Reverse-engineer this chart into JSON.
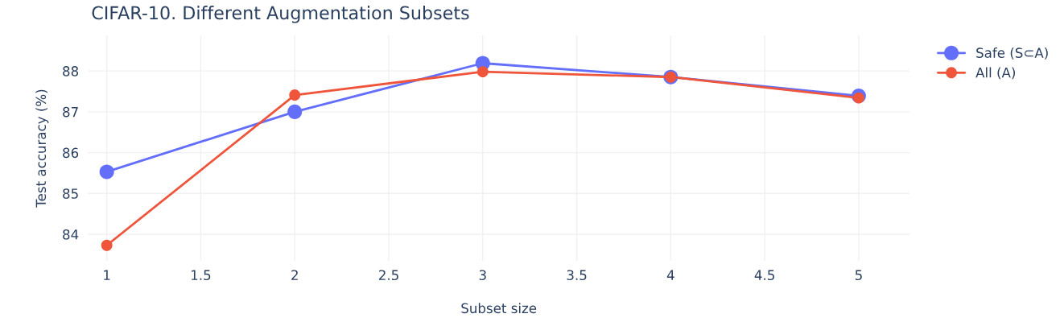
{
  "chart_data": {
    "type": "line",
    "title": "CIFAR-10. Different Augmentation Subsets",
    "xlabel": "Subset size",
    "ylabel": "Test accuracy (%)",
    "x": [
      1,
      2,
      3,
      4,
      5
    ],
    "series": [
      {
        "name": "Safe (S⊂A)",
        "color": "#636efa",
        "values": [
          85.53,
          87.0,
          88.19,
          87.85,
          87.39
        ]
      },
      {
        "name": "All (A)",
        "color": "#ef553b",
        "values": [
          83.73,
          87.41,
          87.98,
          87.85,
          87.34
        ]
      }
    ],
    "xlim": [
      0.9,
      5.27
    ],
    "xticks": [
      1,
      1.5,
      2,
      2.5,
      3,
      3.5,
      4,
      4.5,
      5
    ],
    "ylim": [
      83.35,
      88.87
    ],
    "yticks": [
      84,
      85,
      86,
      87,
      88
    ],
    "grid": true,
    "legend": "top right",
    "marker": "circle",
    "line_style": "solid"
  }
}
